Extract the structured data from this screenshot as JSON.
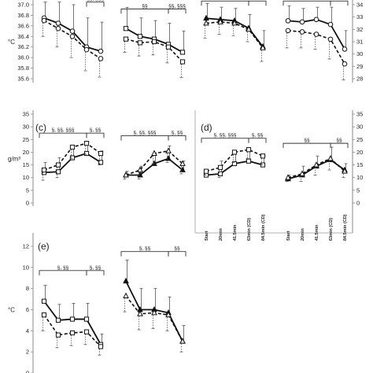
{
  "chart_data": [
    {
      "id": "a-left",
      "type": "line",
      "ylim": [
        35.6,
        37.0
      ],
      "yticks": [
        35.6,
        35.8,
        36.0,
        36.2,
        36.4,
        36.6,
        36.8,
        37.0
      ],
      "tick_labels": [
        "35.6",
        "35.8",
        "36.0",
        "36.2",
        "36.4",
        "36.6",
        "36.8",
        "37.0"
      ],
      "axis_side": "left",
      "ylabel": "°C",
      "series": [
        {
          "style": "solid",
          "marker": "circle",
          "values": [
            36.75,
            36.65,
            36.5,
            36.2,
            36.12
          ],
          "err": [
            0.3,
            0.4,
            0.5,
            0.55,
            0.55
          ]
        },
        {
          "style": "dashed",
          "marker": "circle",
          "values": [
            36.7,
            36.55,
            36.4,
            36.15,
            35.98
          ],
          "err": [
            0.3,
            0.35,
            0.4,
            0.4,
            0.35
          ]
        }
      ],
      "brackets": [
        {
          "from": 3,
          "to": 4,
          "label": "§§, §§§",
          "level": 37.05
        }
      ]
    },
    {
      "id": "a-right",
      "type": "line",
      "ylim": [
        35.6,
        37.0
      ],
      "yticks": [],
      "axis_side": "none",
      "series": [
        {
          "style": "solid",
          "marker": "square",
          "values": [
            36.55,
            36.4,
            36.35,
            36.25,
            36.1
          ],
          "err": [
            0.4,
            0.35,
            0.35,
            0.4,
            0.4
          ]
        },
        {
          "style": "dashed",
          "marker": "square",
          "values": [
            36.35,
            36.28,
            36.3,
            36.2,
            35.92
          ],
          "err": [
            0.25,
            0.25,
            0.25,
            0.3,
            0.3
          ]
        }
      ],
      "brackets": [
        {
          "from": 0,
          "to": 3,
          "label": "§§",
          "level": 36.92
        },
        {
          "from": 3,
          "to": 4,
          "label": "§§, §§§",
          "level": 36.92
        }
      ]
    },
    {
      "id": "b-left",
      "type": "line",
      "ylim": [
        28,
        34
      ],
      "yticks": [],
      "axis_side": "none",
      "series": [
        {
          "style": "solid",
          "marker": "triangle",
          "values": [
            32.9,
            32.8,
            32.7,
            32.1,
            30.6
          ],
          "err": [
            1.2,
            1.0,
            1.0,
            1.1,
            1.3
          ]
        },
        {
          "style": "dashed",
          "marker": "triangle",
          "values": [
            32.5,
            32.6,
            32.5,
            32.0,
            30.5
          ],
          "err": [
            1.2,
            1.0,
            1.0,
            1.0,
            1.1
          ]
        }
      ],
      "brackets": [
        {
          "from": 0,
          "to": 3,
          "label": "",
          "level": 34.3
        },
        {
          "from": 3,
          "to": 4,
          "label": "",
          "level": 34.3
        }
      ]
    },
    {
      "id": "b-right",
      "type": "line",
      "ylim": [
        28,
        34
      ],
      "yticks": [
        28,
        29,
        30,
        31,
        32,
        33,
        34
      ],
      "tick_labels": [
        "28",
        "29",
        "30",
        "31",
        "32",
        "33",
        "34"
      ],
      "axis_side": "right",
      "series": [
        {
          "style": "solid",
          "marker": "circle",
          "values": [
            32.7,
            32.6,
            32.8,
            32.4,
            30.4
          ],
          "err": [
            1.2,
            1.1,
            1.0,
            1.4,
            1.5
          ]
        },
        {
          "style": "dashed",
          "marker": "circle",
          "values": [
            31.9,
            31.8,
            31.6,
            31.2,
            29.2
          ],
          "err": [
            1.4,
            1.3,
            1.2,
            1.6,
            1.3
          ]
        }
      ],
      "brackets": [
        {
          "from": 0,
          "to": 3,
          "label": "",
          "level": 34.3
        },
        {
          "from": 3,
          "to": 4,
          "label": "",
          "level": 34.3
        }
      ]
    },
    {
      "id": "c-left",
      "type": "line",
      "ylim": [
        0,
        35
      ],
      "yticks": [
        0,
        5,
        10,
        15,
        20,
        25,
        30,
        35
      ],
      "tick_labels": [
        "0",
        "5",
        "10",
        "15",
        "20",
        "25",
        "30",
        "35"
      ],
      "axis_side": "left",
      "ylabel": "g/m³",
      "series": [
        {
          "style": "solid",
          "marker": "square",
          "values": [
            12.0,
            12.3,
            17.8,
            19.5,
            16.0
          ],
          "err": [
            4.0,
            5.5,
            5.0,
            4.5,
            4.5
          ]
        },
        {
          "style": "dashed",
          "marker": "square",
          "values": [
            13.0,
            15.0,
            22.0,
            23.5,
            19.5
          ],
          "err": [
            4.0,
            5.0,
            4.5,
            4.5,
            4.5
          ]
        }
      ],
      "brackets": [
        {
          "from": 0,
          "to": 3,
          "label": "§, §§, §§§",
          "level": 27.5
        },
        {
          "from": 3,
          "to": 4,
          "label": "§, §§",
          "level": 27.5
        }
      ]
    },
    {
      "id": "c-right",
      "type": "line",
      "ylim": [
        0,
        35
      ],
      "yticks": [],
      "axis_side": "none",
      "series": [
        {
          "style": "solid",
          "marker": "triangle",
          "values": [
            11.0,
            11.0,
            15.5,
            17.5,
            13.0
          ],
          "err": [
            1.5,
            3.5,
            4.0,
            5.0,
            3.5
          ]
        },
        {
          "style": "dashed",
          "marker": "triangle",
          "values": [
            11.0,
            13.0,
            19.5,
            20.5,
            15.5
          ],
          "err": [
            1.5,
            3.5,
            4.0,
            4.5,
            4.0
          ]
        }
      ],
      "brackets": [
        {
          "from": 0,
          "to": 3,
          "label": "§, §§, §§§",
          "level": 26.5
        },
        {
          "from": 3,
          "to": 4,
          "label": "§, §§",
          "level": 26.5
        }
      ]
    },
    {
      "id": "d-left",
      "type": "line",
      "ylim": [
        0,
        35
      ],
      "yticks": [],
      "axis_side": "none",
      "categories": [
        "Start",
        "20min",
        "41.5min",
        "63min (CD)",
        "84.5min (CD)"
      ],
      "series": [
        {
          "style": "solid",
          "marker": "square",
          "values": [
            11.0,
            11.5,
            15.5,
            16.5,
            15.0
          ],
          "err": [
            2.0,
            5.0,
            4.5,
            4.0,
            3.5
          ]
        },
        {
          "style": "dashed",
          "marker": "square",
          "values": [
            12.5,
            14.0,
            20.0,
            21.0,
            18.5
          ],
          "err": [
            1.5,
            4.0,
            4.0,
            3.5,
            3.5
          ]
        }
      ],
      "brackets": [
        {
          "from": 0,
          "to": 3,
          "label": "§, §§, §§§",
          "level": 25.5
        },
        {
          "from": 3,
          "to": 4,
          "label": "§, §§",
          "level": 25.5
        }
      ]
    },
    {
      "id": "d-right",
      "type": "line",
      "ylim": [
        0,
        35
      ],
      "yticks": [
        0,
        5,
        10,
        15,
        20,
        25,
        30,
        35
      ],
      "tick_labels": [
        "0",
        "5",
        "10",
        "15",
        "20",
        "25",
        "30",
        "35"
      ],
      "axis_side": "right",
      "categories": [
        "Start",
        "20min",
        "41.5min",
        "63min (CD)",
        "84.5min (CD)"
      ],
      "series": [
        {
          "style": "solid",
          "marker": "triangle",
          "values": [
            9.5,
            11.0,
            14.5,
            17.0,
            13.0
          ],
          "err": [
            1.5,
            3.5,
            4.0,
            5.0,
            2.5
          ]
        },
        {
          "style": "dashed",
          "marker": "triangle",
          "values": [
            10.0,
            11.5,
            15.0,
            17.5,
            12.5
          ],
          "err": [
            1.5,
            3.0,
            4.0,
            4.5,
            2.5
          ]
        }
      ],
      "brackets": [
        {
          "from": 0,
          "to": 3,
          "label": "§§",
          "level": 23.5
        },
        {
          "from": 3,
          "to": 4,
          "label": "§§",
          "level": 23.5
        }
      ]
    },
    {
      "id": "e-left",
      "type": "line",
      "ylim": [
        0,
        12
      ],
      "yticks": [
        0,
        2,
        4,
        6,
        8,
        10,
        12
      ],
      "tick_labels": [
        "0",
        "2",
        "4",
        "6",
        "8",
        "10",
        "12"
      ],
      "axis_side": "left",
      "ylabel": "°C",
      "series": [
        {
          "style": "solid",
          "marker": "square",
          "values": [
            6.8,
            5.0,
            5.1,
            5.1,
            2.7
          ],
          "err": [
            1.5,
            1.5,
            1.5,
            1.5,
            1.0
          ]
        },
        {
          "style": "dashed",
          "marker": "square",
          "values": [
            5.5,
            3.6,
            3.8,
            3.9,
            2.5
          ],
          "err": [
            1.5,
            1.2,
            1.2,
            1.2,
            0.8
          ]
        }
      ],
      "brackets": [
        {
          "from": 0,
          "to": 3,
          "label": "§, §§",
          "level": 9.7
        },
        {
          "from": 3,
          "to": 4,
          "label": "§, §§",
          "level": 9.7
        }
      ]
    },
    {
      "id": "e-right",
      "type": "line",
      "ylim": [
        0,
        12
      ],
      "yticks": [],
      "axis_side": "none",
      "series": [
        {
          "style": "solid",
          "marker": "triangle",
          "values": [
            8.7,
            6.0,
            6.0,
            5.7,
            3.0
          ],
          "err": [
            2.0,
            2.0,
            2.0,
            1.5,
            1.5
          ]
        },
        {
          "style": "dashed",
          "marker": "triangle",
          "values": [
            7.3,
            5.6,
            5.7,
            5.5,
            3.0
          ],
          "err": [
            1.5,
            1.5,
            1.5,
            1.5,
            1.0
          ]
        }
      ],
      "brackets": [
        {
          "from": 0,
          "to": 3,
          "label": "§, §§",
          "level": 11.5
        },
        {
          "from": 3,
          "to": 4,
          "label": "§§",
          "level": 11.5
        }
      ]
    }
  ],
  "panel_labels": [
    "(c)",
    "(d)",
    "(e)"
  ]
}
